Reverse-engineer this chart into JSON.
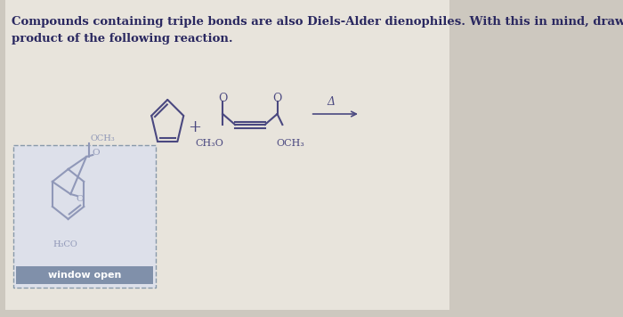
{
  "bg_color": "#cdc8bf",
  "paper_color": "#e8e4dc",
  "text_color": "#2a2860",
  "mol_color": "#4a4880",
  "product_color": "#9098b8",
  "title_text": "Compounds containing triple bonds are also Diels-Alder dienophiles. With this in mind, draw the\nproduct of the following reaction.",
  "title_fontsize": 9.5,
  "fig_width": 7.0,
  "fig_height": 3.56,
  "answer_box_edgecolor": "#8899aa",
  "answer_box_facecolor": "#dde0ea",
  "answer_btn_color": "#8090aa",
  "answer_btn_text": "window open",
  "answer_btn_textcolor": "#ffffff",
  "ch3o_label": "CH₃O",
  "och3_label": "OCH₃",
  "delta_label": "Δ",
  "h3co_label": "H₃CO",
  "och3_product": "OCH₃"
}
